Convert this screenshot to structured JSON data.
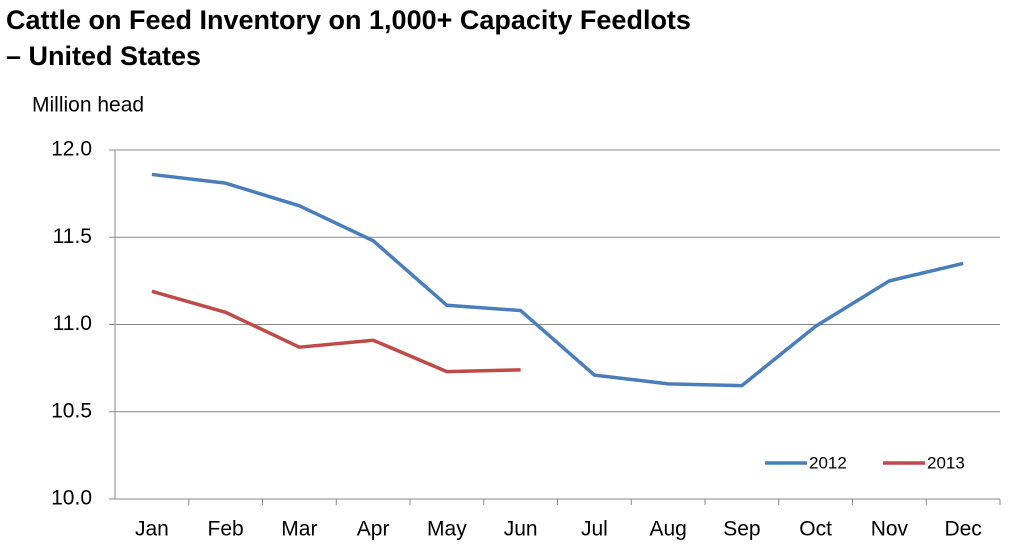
{
  "chart_data": {
    "type": "line",
    "title": "Cattle on Feed Inventory on 1,000+ Capacity Feedlots – United States",
    "y_label": "Million head",
    "categories": [
      "Jan",
      "Feb",
      "Mar",
      "Apr",
      "May",
      "Jun",
      "Jul",
      "Aug",
      "Sep",
      "Oct",
      "Nov",
      "Dec"
    ],
    "series": [
      {
        "name": "2012",
        "color": "#4a7ebb",
        "values": [
          11.86,
          11.81,
          11.68,
          11.48,
          11.11,
          11.08,
          10.71,
          10.66,
          10.65,
          10.99,
          11.25,
          11.35
        ]
      },
      {
        "name": "2013",
        "color": "#be4b48",
        "values": [
          11.19,
          11.07,
          10.87,
          10.91,
          10.73,
          10.74,
          null,
          null,
          null,
          null,
          null,
          null
        ]
      }
    ],
    "ylim": [
      10,
      12
    ],
    "yticks": [
      {
        "value": 10,
        "label": "10.0"
      },
      10.5,
      {
        "value": 11,
        "label": "11.0"
      },
      11.5,
      {
        "value": 12,
        "label": "12.0"
      }
    ],
    "grid": true,
    "legend": "lower-right"
  }
}
